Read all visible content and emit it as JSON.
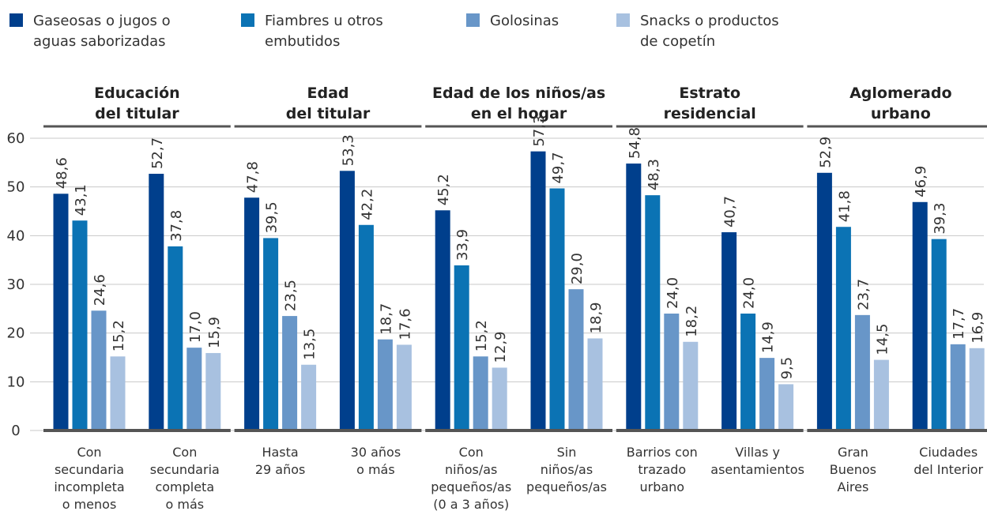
{
  "chart_data": {
    "type": "bar",
    "groups": [
      {
        "title": "Educación\ndel titular",
        "categories": [
          "Con\nsecundaria\nincompleta\no menos",
          "Con\nsecundaria\ncompleta\no más"
        ]
      },
      {
        "title": "Edad\ndel titular",
        "categories": [
          "Hasta\n29 años",
          "30 años\no más"
        ]
      },
      {
        "title": "Edad de los niños/as\nen el hogar",
        "categories": [
          "Con\nniños/as\npequeños/as\n(0 a 3 años)",
          "Sin\nniños/as\npequeños/as"
        ]
      },
      {
        "title": "Estrato\nresidencial",
        "categories": [
          "Barrios con\ntrazado\nurbano",
          "Villas y\nasentamientos"
        ]
      },
      {
        "title": "Aglomerado\nurbano",
        "categories": [
          "Gran\nBuenos\nAires",
          "Ciudades\ndel Interior"
        ]
      }
    ],
    "series": [
      {
        "name": "Gaseosas o jugos o\naguas saborizadas",
        "color": "#003f8c",
        "values": [
          48.6,
          52.7,
          47.8,
          53.3,
          45.2,
          57.3,
          54.8,
          40.7,
          52.9,
          46.9
        ],
        "value_labels": [
          "48,6",
          "52,7",
          "47,8",
          "53,3",
          "45,2",
          "57,3",
          "54,8",
          "40,7",
          "52,9",
          "46,9"
        ]
      },
      {
        "name": "Fiambres u otros\nembutidos",
        "color": "#0b73b4",
        "values": [
          43.1,
          37.8,
          39.5,
          42.2,
          33.9,
          49.7,
          48.3,
          24.0,
          41.8,
          39.3
        ],
        "value_labels": [
          "43,1",
          "37,8",
          "39,5",
          "42,2",
          "33,9",
          "49,7",
          "48,3",
          "24,0",
          "41,8",
          "39,3"
        ]
      },
      {
        "name": "Golosinas",
        "color": "#6896c8",
        "values": [
          24.6,
          17.0,
          23.5,
          18.7,
          15.2,
          29.0,
          24.0,
          14.9,
          23.7,
          17.7
        ],
        "value_labels": [
          "24,6",
          "17,0",
          "23,5",
          "18,7",
          "15,2",
          "29,0",
          "24,0",
          "14,9",
          "23,7",
          "17,7"
        ]
      },
      {
        "name": "Snacks o productos\nde copetín",
        "color": "#a8c1e0",
        "values": [
          15.2,
          15.9,
          13.5,
          17.6,
          12.9,
          18.9,
          18.2,
          9.5,
          14.5,
          16.9
        ],
        "value_labels": [
          "15,2",
          "15,9",
          "13,5",
          "17,6",
          "12,9",
          "18,9",
          "18,2",
          "9,5",
          "14,5",
          "16,9"
        ]
      }
    ],
    "ylim": [
      0,
      60
    ],
    "yticks": [
      0,
      10,
      20,
      30,
      40,
      50,
      60
    ],
    "grid": true,
    "legend": "top"
  }
}
